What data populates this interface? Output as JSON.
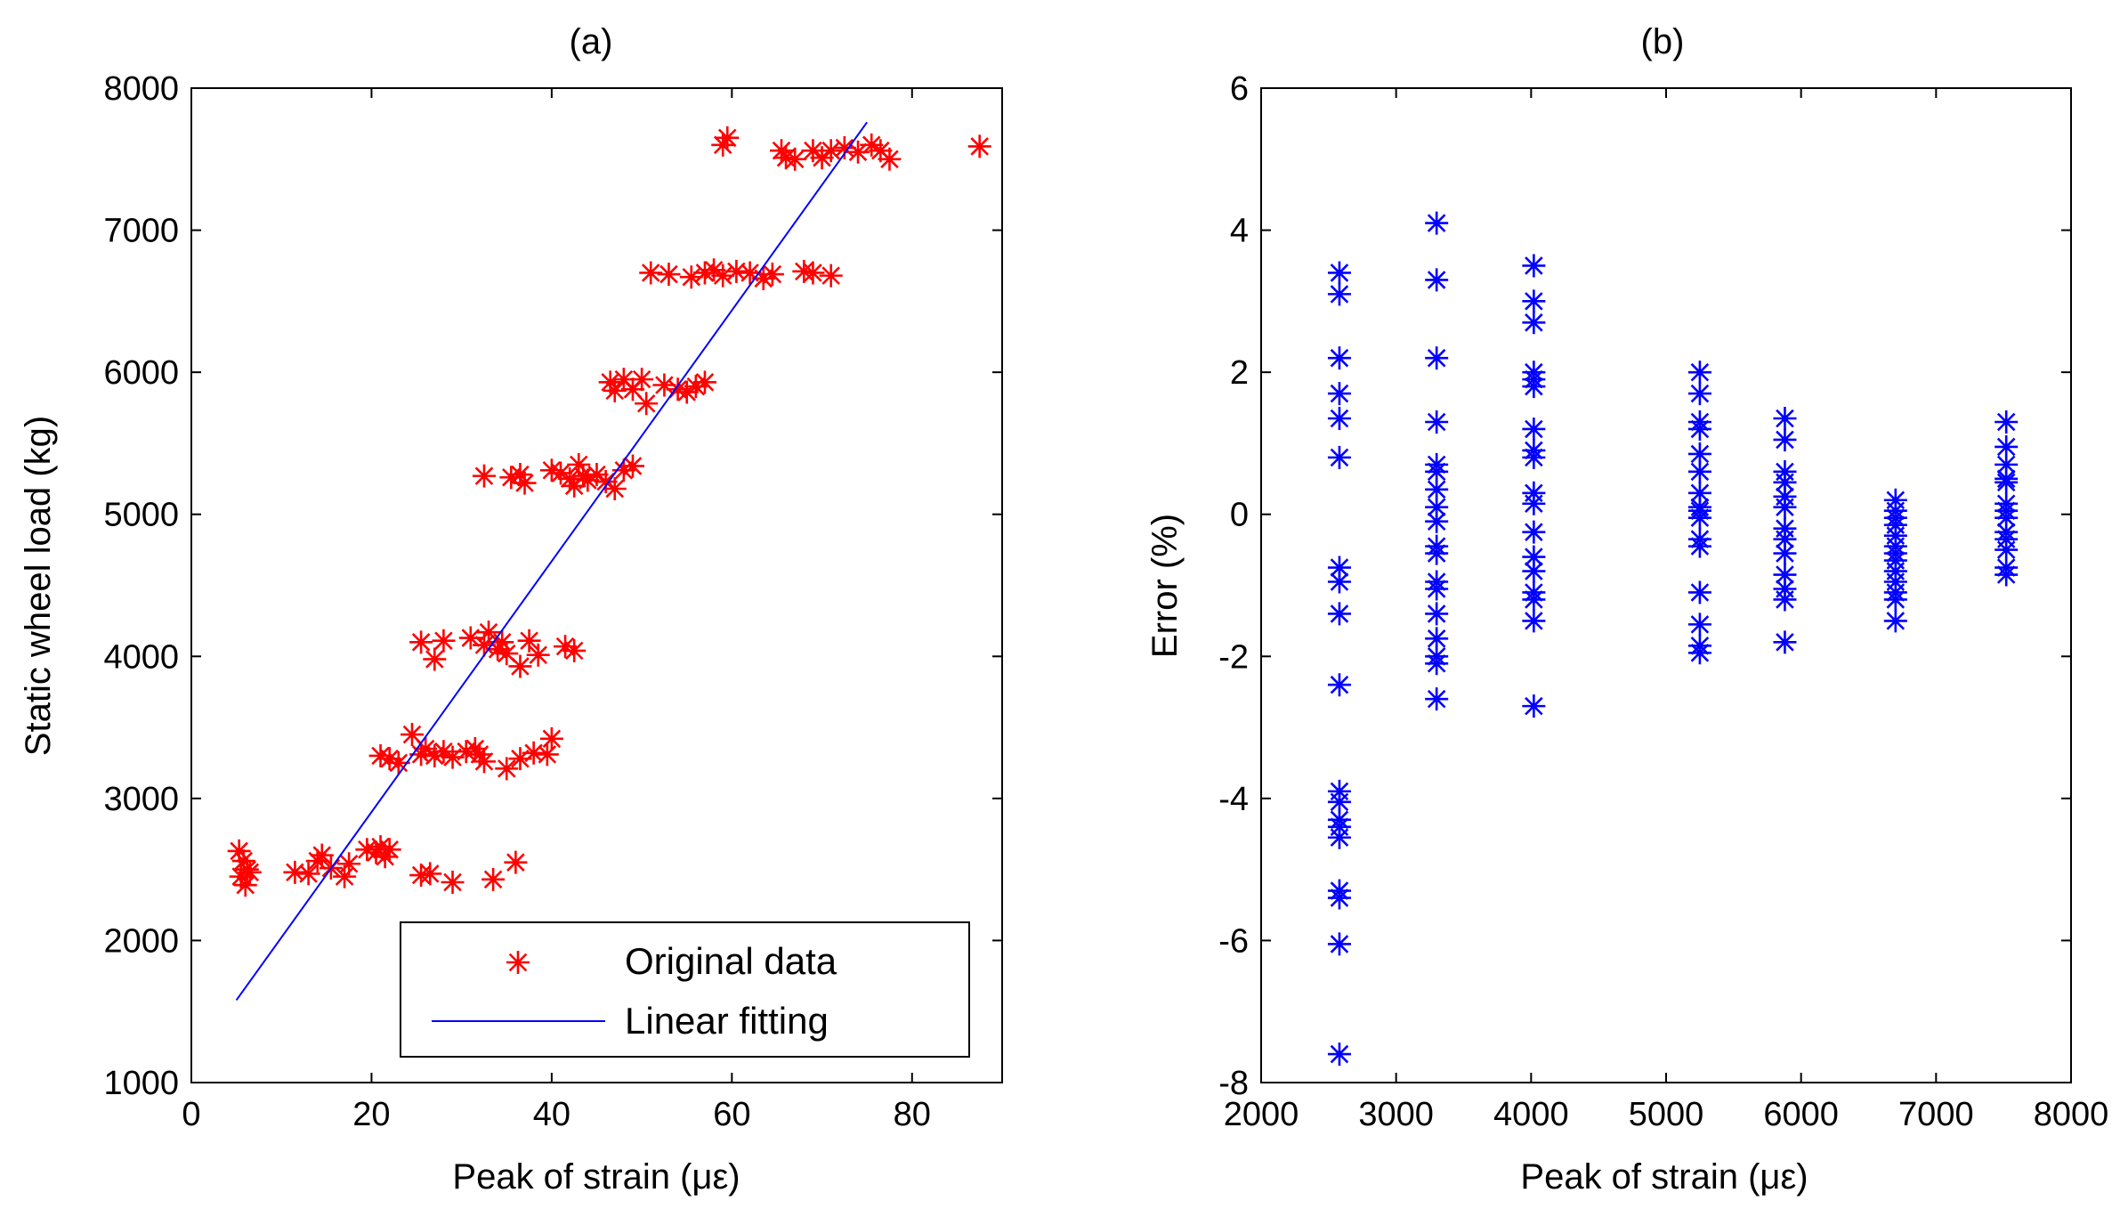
{
  "chart_data": [
    {
      "type": "scatter",
      "title": "(a)",
      "xlabel": "Peak of strain (με)",
      "ylabel": "Static wheel load (kg)",
      "xlim": [
        0,
        90
      ],
      "ylim": [
        1000,
        8000
      ],
      "xticks": [
        0,
        20,
        40,
        60,
        80
      ],
      "yticks": [
        1000,
        2000,
        3000,
        4000,
        5000,
        6000,
        7000,
        8000
      ],
      "xtick_labels": [
        "0",
        "20",
        "40",
        "60",
        "80"
      ],
      "ytick_labels": [
        "1000",
        "2000",
        "3000",
        "4000",
        "5000",
        "6000",
        "7000",
        "8000"
      ],
      "grid": false,
      "legend": {
        "position": "bottom-right",
        "entries": [
          {
            "label": "Original data",
            "color": "#ff0000",
            "marker": "asterisk"
          },
          {
            "label": "Linear fitting",
            "color": "#0000ff",
            "marker": "line"
          }
        ]
      },
      "series": [
        {
          "name": "Original data",
          "mode": "markers",
          "color": "#ff0000",
          "points": [
            [
              5.3,
              2630
            ],
            [
              5.8,
              2560
            ],
            [
              6.2,
              2500
            ],
            [
              5.5,
              2450
            ],
            [
              6.0,
              2390
            ],
            [
              6.5,
              2480
            ],
            [
              11.5,
              2480
            ],
            [
              13,
              2470
            ],
            [
              14,
              2560
            ],
            [
              14.5,
              2600
            ],
            [
              15.5,
              2510
            ],
            [
              17,
              2450
            ],
            [
              17.5,
              2540
            ],
            [
              19.5,
              2640
            ],
            [
              20.5,
              2620
            ],
            [
              21,
              2660
            ],
            [
              21.5,
              2590
            ],
            [
              22,
              2640
            ],
            [
              25.5,
              2460
            ],
            [
              26.5,
              2470
            ],
            [
              29,
              2410
            ],
            [
              33.5,
              2430
            ],
            [
              36,
              2550
            ],
            [
              21,
              3300
            ],
            [
              22,
              3280
            ],
            [
              23,
              3250
            ],
            [
              24.5,
              3450
            ],
            [
              25.5,
              3310
            ],
            [
              26,
              3350
            ],
            [
              27,
              3300
            ],
            [
              28,
              3330
            ],
            [
              29,
              3290
            ],
            [
              30.5,
              3330
            ],
            [
              31.5,
              3350
            ],
            [
              32,
              3310
            ],
            [
              32.5,
              3260
            ],
            [
              35,
              3210
            ],
            [
              36.5,
              3280
            ],
            [
              38,
              3320
            ],
            [
              39.5,
              3310
            ],
            [
              40,
              3420
            ],
            [
              25.5,
              4100
            ],
            [
              27,
              3980
            ],
            [
              28,
              4110
            ],
            [
              31,
              4130
            ],
            [
              32.5,
              4080
            ],
            [
              33,
              4170
            ],
            [
              34,
              4050
            ],
            [
              34.5,
              4100
            ],
            [
              35,
              4020
            ],
            [
              36.5,
              3930
            ],
            [
              37.5,
              4110
            ],
            [
              38.5,
              4010
            ],
            [
              41.5,
              4070
            ],
            [
              42.5,
              4040
            ],
            [
              32.5,
              5270
            ],
            [
              35.5,
              5260
            ],
            [
              36.5,
              5280
            ],
            [
              37,
              5220
            ],
            [
              40,
              5310
            ],
            [
              41,
              5290
            ],
            [
              42,
              5250
            ],
            [
              42.5,
              5200
            ],
            [
              43,
              5350
            ],
            [
              43.5,
              5270
            ],
            [
              44,
              5240
            ],
            [
              45,
              5280
            ],
            [
              46,
              5230
            ],
            [
              47,
              5180
            ],
            [
              48,
              5310
            ],
            [
              49,
              5340
            ],
            [
              46.5,
              5930
            ],
            [
              47,
              5870
            ],
            [
              48,
              5950
            ],
            [
              49,
              5880
            ],
            [
              50,
              5950
            ],
            [
              50.5,
              5780
            ],
            [
              52.5,
              5910
            ],
            [
              54,
              5880
            ],
            [
              55,
              5860
            ],
            [
              56,
              5900
            ],
            [
              57,
              5930
            ],
            [
              51,
              6700
            ],
            [
              53,
              6690
            ],
            [
              55.5,
              6670
            ],
            [
              57,
              6700
            ],
            [
              58,
              6720
            ],
            [
              59,
              6680
            ],
            [
              60.5,
              6710
            ],
            [
              62,
              6700
            ],
            [
              63.5,
              6660
            ],
            [
              64.5,
              6690
            ],
            [
              68,
              6710
            ],
            [
              69,
              6700
            ],
            [
              71,
              6680
            ],
            [
              59,
              7600
            ],
            [
              59.5,
              7650
            ],
            [
              65.5,
              7560
            ],
            [
              66,
              7510
            ],
            [
              67,
              7500
            ],
            [
              69,
              7560
            ],
            [
              70,
              7510
            ],
            [
              71,
              7560
            ],
            [
              72.5,
              7580
            ],
            [
              74,
              7550
            ],
            [
              75.5,
              7600
            ],
            [
              76.5,
              7560
            ],
            [
              77.5,
              7500
            ],
            [
              87.5,
              7590
            ]
          ]
        },
        {
          "name": "Linear fitting",
          "mode": "line",
          "color": "#0000ff",
          "points": [
            [
              5,
              1580
            ],
            [
              75,
              7760
            ]
          ]
        }
      ]
    },
    {
      "type": "scatter",
      "title": "(b)",
      "xlabel": "Peak of strain (με)",
      "ylabel": "Error (%)",
      "xlim": [
        2000,
        8000
      ],
      "ylim": [
        -8,
        6
      ],
      "xticks": [
        2000,
        3000,
        4000,
        5000,
        6000,
        7000,
        8000
      ],
      "yticks": [
        -8,
        -6,
        -4,
        -2,
        0,
        2,
        4,
        6
      ],
      "xtick_labels": [
        "2000",
        "3000",
        "4000",
        "5000",
        "6000",
        "7000",
        "8000"
      ],
      "ytick_labels": [
        "-8",
        "-6",
        "-4",
        "-2",
        "0",
        "2",
        "4",
        "6"
      ],
      "grid": false,
      "series": [
        {
          "mode": "markers",
          "color": "#0000ff",
          "columns": [
            {
              "x": 2580,
              "y": [
                3.4,
                3.1,
                2.2,
                1.7,
                1.35,
                0.8,
                -0.75,
                -0.95,
                -1.4,
                -2.4,
                -3.9,
                -4.05,
                -4.3,
                -4.4,
                -4.55,
                -5.3,
                -5.4,
                -6.05,
                -7.6
              ]
            },
            {
              "x": 3300,
              "y": [
                4.1,
                3.3,
                2.2,
                1.3,
                0.7,
                0.6,
                0.35,
                0.1,
                -0.1,
                -0.45,
                -0.55,
                -0.95,
                -1.05,
                -1.4,
                -1.75,
                -2.0,
                -2.1,
                -2.6
              ]
            },
            {
              "x": 4020,
              "y": [
                3.5,
                3.0,
                2.7,
                2.0,
                1.9,
                1.8,
                1.2,
                0.9,
                0.8,
                0.3,
                0.15,
                -0.25,
                -0.6,
                -0.8,
                -1.1,
                -1.2,
                -1.5,
                -2.7
              ]
            },
            {
              "x": 5250,
              "y": [
                2.0,
                1.7,
                1.3,
                1.2,
                0.85,
                0.6,
                0.3,
                0.1,
                0.05,
                -0.05,
                -0.35,
                -0.45,
                -1.1,
                -1.55,
                -1.85,
                -1.95
              ]
            },
            {
              "x": 5880,
              "y": [
                1.35,
                1.05,
                0.6,
                0.45,
                0.25,
                0.1,
                -0.2,
                -0.35,
                -0.55,
                -0.85,
                -1.05,
                -1.2,
                -1.8
              ]
            },
            {
              "x": 6700,
              "y": [
                0.2,
                0.05,
                -0.05,
                -0.15,
                -0.3,
                -0.45,
                -0.55,
                -0.65,
                -0.8,
                -0.95,
                -1.1,
                -1.2,
                -1.5
              ]
            },
            {
              "x": 7520,
              "y": [
                1.3,
                0.95,
                0.7,
                0.5,
                0.45,
                0.15,
                0.05,
                -0.05,
                -0.25,
                -0.35,
                -0.5,
                -0.75,
                -0.85
              ]
            }
          ]
        }
      ]
    }
  ]
}
